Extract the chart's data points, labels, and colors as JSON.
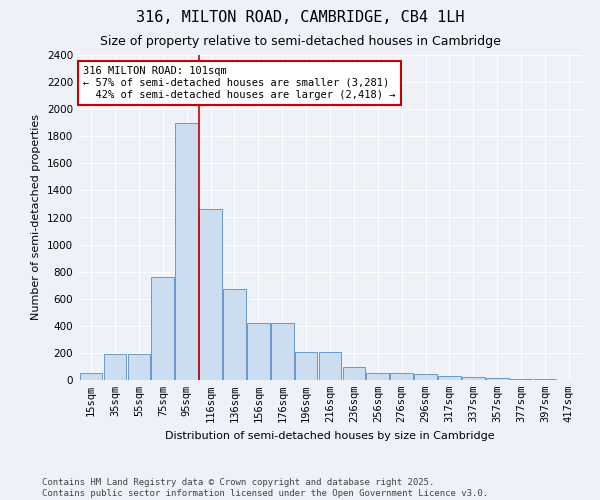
{
  "title": "316, MILTON ROAD, CAMBRIDGE, CB4 1LH",
  "subtitle": "Size of property relative to semi-detached houses in Cambridge",
  "xlabel": "Distribution of semi-detached houses by size in Cambridge",
  "ylabel": "Number of semi-detached properties",
  "categories": [
    "15sqm",
    "35sqm",
    "55sqm",
    "75sqm",
    "95sqm",
    "116sqm",
    "136sqm",
    "156sqm",
    "176sqm",
    "196sqm",
    "216sqm",
    "236sqm",
    "256sqm",
    "276sqm",
    "296sqm",
    "317sqm",
    "337sqm",
    "357sqm",
    "377sqm",
    "397sqm",
    "417sqm"
  ],
  "values": [
    50,
    195,
    195,
    760,
    1900,
    1260,
    670,
    420,
    420,
    210,
    210,
    95,
    55,
    50,
    45,
    28,
    25,
    12,
    8,
    4,
    2
  ],
  "bar_color": "#ccddf0",
  "bar_edge_color": "#6699cc",
  "vline_x": 4.5,
  "vline_color": "#cc0000",
  "annotation_text": "316 MILTON ROAD: 101sqm\n← 57% of semi-detached houses are smaller (3,281)\n  42% of semi-detached houses are larger (2,418) →",
  "annotation_box_color": "#ffffff",
  "annotation_box_edge_color": "#cc0000",
  "ylim": [
    0,
    2400
  ],
  "yticks": [
    0,
    200,
    400,
    600,
    800,
    1000,
    1200,
    1400,
    1600,
    1800,
    2000,
    2200,
    2400
  ],
  "footer": "Contains HM Land Registry data © Crown copyright and database right 2025.\nContains public sector information licensed under the Open Government Licence v3.0.",
  "bg_color": "#eef2f8",
  "grid_color": "#ffffff",
  "title_fontsize": 11,
  "subtitle_fontsize": 9,
  "axis_label_fontsize": 8,
  "tick_fontsize": 7.5,
  "footer_fontsize": 6.5,
  "annotation_fontsize": 7.5
}
